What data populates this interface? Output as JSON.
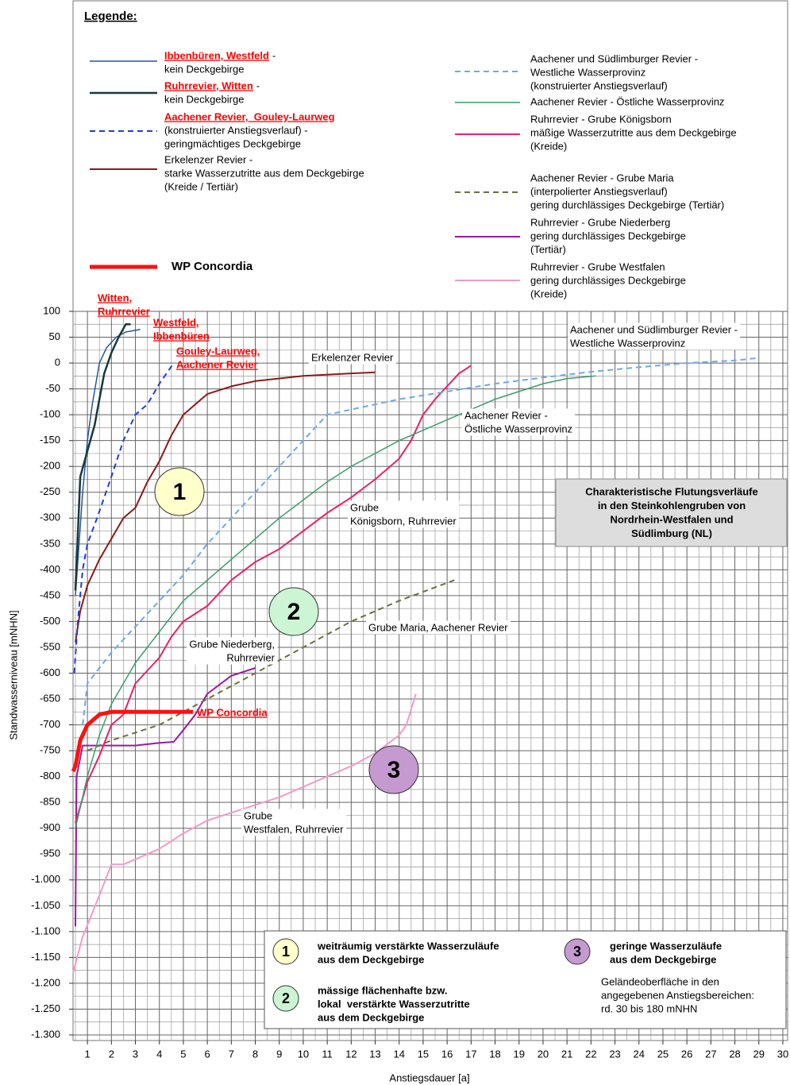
{
  "chart_data": {
    "type": "line",
    "legend_title": "Legende:",
    "xlabel": "Anstiegsdauer [a]",
    "ylabel": "Standwasserniveau [mNHN]",
    "xlim": [
      0.4,
      30.2
    ],
    "ylim": [
      -1300,
      100
    ],
    "xticks": [
      1,
      2,
      3,
      4,
      5,
      6,
      7,
      8,
      9,
      10,
      11,
      12,
      13,
      14,
      15,
      16,
      17,
      18,
      19,
      20,
      21,
      22,
      23,
      24,
      25,
      26,
      27,
      28,
      29,
      30
    ],
    "yticks": [
      100,
      50,
      0,
      -50,
      -100,
      -150,
      -200,
      -250,
      -300,
      -350,
      -400,
      -450,
      -500,
      -550,
      -600,
      -650,
      -700,
      -750,
      -800,
      -850,
      -900,
      -950,
      {
        "value": -1000,
        "label": "-1.000"
      },
      {
        "value": -1050,
        "label": "-1.050"
      },
      {
        "value": -1100,
        "label": "-1.100"
      },
      {
        "value": -1150,
        "label": "-1.150"
      },
      {
        "value": -1200,
        "label": "-1.200"
      },
      {
        "value": -1250,
        "label": "-1.250"
      },
      {
        "value": -1300,
        "label": "-1.300"
      }
    ],
    "grid": true,
    "minor_grid": true,
    "series": [
      {
        "name": "Ibbenbüren, Westfeld",
        "highlight": true,
        "legend_suffix": "-",
        "legend_lines": [
          "kein Deckgebirge"
        ],
        "color": "#2456a4",
        "width": 1.5,
        "dash": false,
        "x": [
          0.5,
          0.8,
          1,
          1.2,
          1.5,
          1.8,
          2.2,
          2.6,
          3.2
        ],
        "values": [
          -450,
          -250,
          -150,
          -80,
          0,
          30,
          50,
          60,
          65
        ]
      },
      {
        "name": "Ruhrrevier, Witten",
        "highlight": true,
        "legend_suffix": "-",
        "legend_lines": [
          "kein Deckgebirge"
        ],
        "color": "#17393b",
        "width": 2.5,
        "dash": false,
        "x": [
          0.5,
          0.7,
          1,
          1.3,
          1.5,
          1.7,
          2,
          2.3,
          2.6,
          2.8
        ],
        "values": [
          -440,
          -220,
          -170,
          -120,
          -70,
          -20,
          20,
          50,
          75,
          75
        ]
      },
      {
        "name": "Aachener Revier,  Gouley-Laurweg",
        "highlight": true,
        "legend_lines": [
          "(konstruierter Anstiegsverlauf) -",
          "geringmächtiges Deckgebirge"
        ],
        "color": "#1f3fd6",
        "width": 2,
        "dash": true,
        "x": [
          0.45,
          0.6,
          0.8,
          1,
          1.4,
          2,
          2.5,
          3,
          3.5,
          4,
          4.6
        ],
        "values": [
          -600,
          -500,
          -400,
          -350,
          -300,
          -220,
          -150,
          -100,
          -80,
          -40,
          0
        ]
      },
      {
        "name": "Erkelenzer Revier -",
        "legend_lines": [
          "starke Wasserzutritte aus dem Deckgebirge",
          "(Kreide / Tertiär)"
        ],
        "color": "#8b1a1a",
        "width": 2,
        "dash": false,
        "x": [
          0.5,
          0.7,
          1,
          1.5,
          2,
          2.5,
          3,
          3.5,
          4,
          4.5,
          5,
          6,
          7,
          8,
          10,
          12,
          13
        ],
        "values": [
          -540,
          -480,
          -430,
          -380,
          -340,
          -300,
          -280,
          -230,
          -190,
          -140,
          -100,
          -60,
          -45,
          -35,
          -25,
          -20,
          -18
        ]
      },
      {
        "name": "WP Concordia",
        "bold": true,
        "color": "#ff1010",
        "width": 5,
        "dash": false,
        "x": [
          0.4,
          0.5,
          0.7,
          1,
          1.5,
          2,
          5.4
        ],
        "values": [
          -790,
          -780,
          -730,
          -700,
          -680,
          -675,
          -675
        ]
      },
      {
        "name": "Aachener und Südlimburger Revier -",
        "legend_lines": [
          "Westliche Wasserprovinz",
          "(konstruierter Anstiegsverlauf)"
        ],
        "color": "#6ea8e8",
        "width": 2,
        "dash": true,
        "x": [
          0.8,
          1,
          1.5,
          2,
          3,
          4,
          5,
          6,
          7,
          8,
          9,
          10,
          11,
          12,
          14,
          16,
          18,
          20,
          22,
          24,
          26,
          28,
          29
        ],
        "values": [
          -700,
          -620,
          -590,
          -560,
          -510,
          -460,
          -410,
          -350,
          -300,
          -250,
          -200,
          -150,
          -100,
          -90,
          -70,
          -55,
          -40,
          -28,
          -17,
          -8,
          0,
          5,
          10
        ]
      },
      {
        "name": "Aachener Revier - Östliche Wasserprovinz",
        "legend_lines": [],
        "color": "#3a9e6a",
        "width": 1.5,
        "dash": false,
        "x": [
          0.5,
          1,
          1.5,
          2,
          3,
          4,
          5,
          6,
          7,
          8,
          9,
          10,
          11,
          12,
          13,
          14,
          15,
          16,
          17,
          18,
          19,
          20,
          21,
          22.2
        ],
        "values": [
          -900,
          -800,
          -720,
          -660,
          -580,
          -520,
          -460,
          -420,
          -380,
          -340,
          -300,
          -265,
          -230,
          -200,
          -175,
          -150,
          -130,
          -110,
          -90,
          -70,
          -55,
          -40,
          -30,
          -25
        ]
      },
      {
        "name": "Ruhrrevier - Grube Königsborn",
        "legend_lines": [
          "mäßige Wasserzutritte aus dem Deckgebirge",
          "(Kreide)"
        ],
        "color": "#e8206a",
        "width": 2,
        "dash": false,
        "x": [
          0.5,
          1,
          1.3,
          1.5,
          2,
          2.5,
          3,
          4,
          4.5,
          5,
          6,
          7,
          8,
          9,
          10,
          11,
          12,
          13,
          14,
          14.5,
          15,
          15.5,
          16,
          16.5,
          17
        ],
        "values": [
          -890,
          -810,
          -780,
          -760,
          -700,
          -680,
          -620,
          -570,
          -530,
          -500,
          -470,
          -420,
          -385,
          -360,
          -325,
          -290,
          -260,
          -225,
          -185,
          -150,
          -100,
          -70,
          -45,
          -20,
          -5
        ]
      },
      {
        "name": "Aachener Revier - Grube Maria",
        "legend_lines": [
          "(interpolierter Anstiegsverlauf)",
          "gering durchlässiges Deckgebirge (Tertiär)"
        ],
        "color": "#6b7040",
        "width": 2,
        "dash": true,
        "x": [
          1,
          2,
          4,
          6,
          8,
          10,
          12,
          14,
          16.3
        ],
        "values": [
          -750,
          -730,
          -700,
          -650,
          -600,
          -550,
          -500,
          -460,
          -420
        ]
      },
      {
        "name": "Ruhrrevier - Grube Niederberg",
        "legend_lines": [
          "gering durchlässiges Deckgebirge",
          "(Tertiär)"
        ],
        "color": "#9a1aa0",
        "width": 2,
        "dash": false,
        "x": [
          0.5,
          0.55,
          0.8,
          1,
          3,
          4,
          4.6,
          5,
          5.5,
          6,
          7,
          8
        ],
        "values": [
          -1090,
          -800,
          -740,
          -740,
          -740,
          -735,
          -733,
          -710,
          -680,
          -640,
          -605,
          -590
        ]
      },
      {
        "name": "Ruhrrevier - Grube Westfalen",
        "legend_lines": [
          "gering durchlässiges Deckgebirge",
          "(Kreide)"
        ],
        "color": "#f49ac8",
        "width": 2,
        "dash": false,
        "x": [
          0.4,
          0.8,
          1.5,
          2,
          2.5,
          3,
          4,
          5,
          6,
          7,
          8,
          9,
          10,
          11,
          12,
          13,
          14,
          14.3,
          14.7
        ],
        "values": [
          -1180,
          -1110,
          -1030,
          -970,
          -970,
          -960,
          -940,
          -910,
          -885,
          -870,
          -855,
          -840,
          -820,
          -800,
          -780,
          -755,
          -720,
          -700,
          -640
        ]
      }
    ],
    "annotations": [
      {
        "lines": [
          "Witten,",
          "Ruhrrevier"
        ],
        "highlight": true
      },
      {
        "lines": [
          "Westfeld,",
          "Ibbenbüren"
        ],
        "highlight": true
      },
      {
        "lines": [
          "Gouley-Laurweg,",
          "Aachener Revier"
        ],
        "highlight": true
      },
      {
        "lines": [
          "WP Concordia"
        ],
        "highlight": true
      },
      {
        "lines": [
          "Erkelenzer Revier"
        ]
      },
      {
        "lines": [
          "Aachener und Südlimburger Revier -",
          "Westliche Wasserprovinz"
        ]
      },
      {
        "lines": [
          "Aachener Revier -",
          "Östliche Wasserprovinz"
        ]
      },
      {
        "lines": [
          "Grube",
          "Königsborn, Ruhrrevier"
        ]
      },
      {
        "lines": [
          "Grube Maria, Aachener Revier"
        ]
      },
      {
        "lines": [
          "Grube Niederberg,",
          "Ruhrrevier"
        ]
      },
      {
        "lines": [
          "Grube",
          "Westfalen, Ruhrrevier"
        ]
      }
    ],
    "markers": [
      {
        "label": "1",
        "color": "#ffffcc",
        "lines": [
          "weiträumig verstärkte Wasserzuläufe",
          "aus dem Deckgebirge"
        ]
      },
      {
        "label": "2",
        "color": "#ccf5d4",
        "lines": [
          "mässige flächenhafte bzw.",
          "lokal  verstärkte Wasserzutritte",
          "aus dem Deckgebirge"
        ]
      },
      {
        "label": "3",
        "color": "#c49ad0",
        "lines": [
          "geringe Wasserzuläufe",
          "aus dem Deckgebirge"
        ]
      }
    ],
    "key_note": [
      "Geländeoberfläche in den",
      "angegebenen Anstiegsbereichen:",
      "rd. 30 bis 180 mNHN"
    ],
    "info_box": [
      "Charakteristische Flutungsverläufe",
      "in den Steinkohlengruben von",
      "Nordrhein-Westfalen und",
      "Südlimburg (NL)"
    ]
  }
}
